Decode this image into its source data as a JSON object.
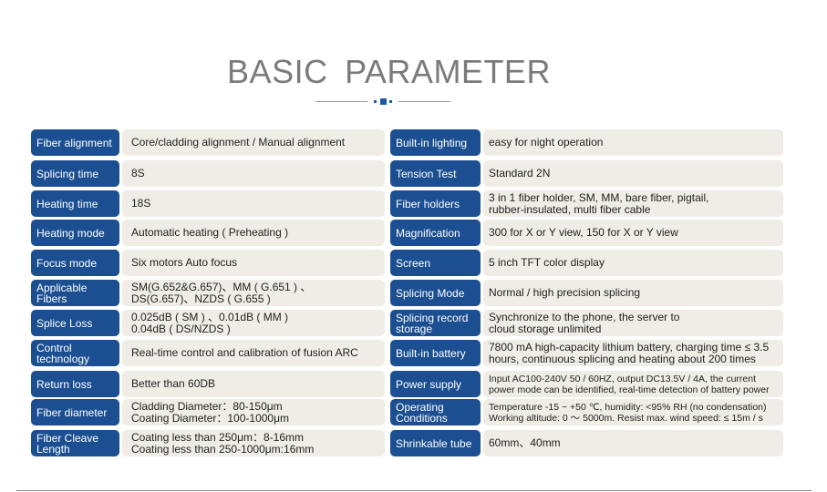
{
  "title": "BASIC  PARAMETER",
  "colors": {
    "label_bg": "#1b4f91",
    "value_bg": "#efede6",
    "title": "#7b7b7b"
  },
  "left": [
    {
      "label": "Fiber alignment",
      "value": "Core/cladding alignment  / Manual alignment"
    },
    {
      "label": "Splicing time",
      "value": "8S"
    },
    {
      "label": "Heating time",
      "value": "18S"
    },
    {
      "label": "Heating mode",
      "value": "Automatic heating ( Preheating )"
    },
    {
      "label": "Focus mode",
      "value": "Six motors  Auto focus"
    },
    {
      "label": "Applicable Fibers",
      "value": "SM(G.652&G.657)、MM ( G.651 ) 、\nDS(G.657)、NZDS ( G.655 )"
    },
    {
      "label": "Splice Loss",
      "value": "0.025dB ( SM ) 、0.01dB ( MM )\n0.04dB ( DS/NZDS )"
    },
    {
      "label": "Control technology",
      "value": "Real-time control and calibration of fusion ARC"
    },
    {
      "label": "Return loss",
      "value": "Better than 60DB"
    },
    {
      "label": "Fiber diameter",
      "value": "Cladding Diameter：80-150μm\nCoating Diameter：100-1000μm"
    },
    {
      "label": "Fiber Cleave Length",
      "value": "Coating less than 250μm：8-16mm\nCoating less than 250-1000μm:16mm"
    }
  ],
  "right": [
    {
      "label": "Built-in lighting",
      "value": "easy for night operation"
    },
    {
      "label": "Tension Test",
      "value": "Standard 2N"
    },
    {
      "label": "Fiber holders",
      "value": "3 in 1 fiber holder, SM, MM, bare fiber, pigtail,\nrubber-insulated, multi fiber cable"
    },
    {
      "label": "Magnification",
      "value": "300 for X or Y view, 150 for X or Y view"
    },
    {
      "label": "Screen",
      "value": "5 inch TFT color display"
    },
    {
      "label": "Splicing Mode",
      "value": "Normal / high precision splicing"
    },
    {
      "label": "Splicing record storage",
      "value": "Synchronize to the phone, the server to\ncloud storage unlimited"
    },
    {
      "label": "Built-in battery",
      "value": "7800 mA high-capacity lithium battery, charging time ≤ 3.5\nhours, continuous splicing and heating about 200 times"
    },
    {
      "label": "Power supply",
      "value": "Input AC100-240V 50 / 60HZ, output DC13.5V / 4A, the current\npower mode can be identified, real-time detection of battery power"
    },
    {
      "label": "Operating Conditions",
      "value": "Temperature -15 ~ +50 ℃, humidity: <95% RH (no condensation)\nWorking altitude: 0 ～ 5000m. Resist max. wind speed: ≤ 15m / s"
    },
    {
      "label": "Shrinkable tube",
      "value": "60mm、40mm"
    }
  ]
}
